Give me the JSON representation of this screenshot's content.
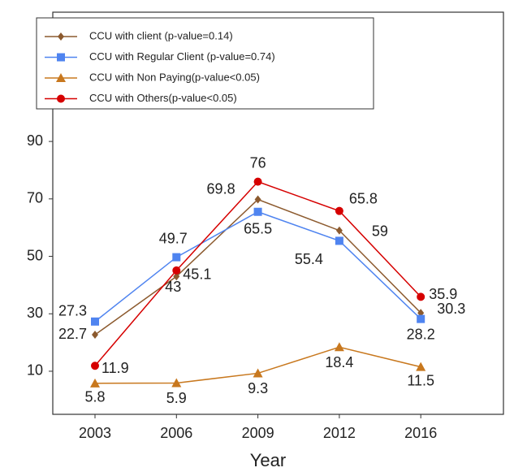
{
  "chart_data": {
    "type": "line",
    "xlabel": "Year",
    "categories": [
      "2003",
      "2006",
      "2009",
      "2012",
      "2016"
    ],
    "ylim": [
      -5,
      135
    ],
    "yticks": [
      10,
      30,
      50,
      70,
      90
    ],
    "series": [
      {
        "name": "CCU with client (p-value=0.14)",
        "color": "#8c5a2e",
        "marker": "diamond",
        "values": [
          22.7,
          43,
          69.8,
          59,
          30.3
        ]
      },
      {
        "name": "CCU with Regular Client (p-value=0.74)",
        "color": "#4f84f0",
        "marker": "square",
        "values": [
          27.3,
          49.7,
          65.5,
          55.4,
          28.2
        ]
      },
      {
        "name": "CCU with Non Paying(p-value<0.05)",
        "color": "#c8781e",
        "marker": "triangle",
        "values": [
          5.8,
          5.9,
          9.3,
          18.4,
          11.5
        ]
      },
      {
        "name": "CCU with Others(p-value<0.05)",
        "color": "#d60000",
        "marker": "circle",
        "values": [
          11.9,
          45.1,
          76,
          65.8,
          35.9
        ]
      }
    ]
  }
}
